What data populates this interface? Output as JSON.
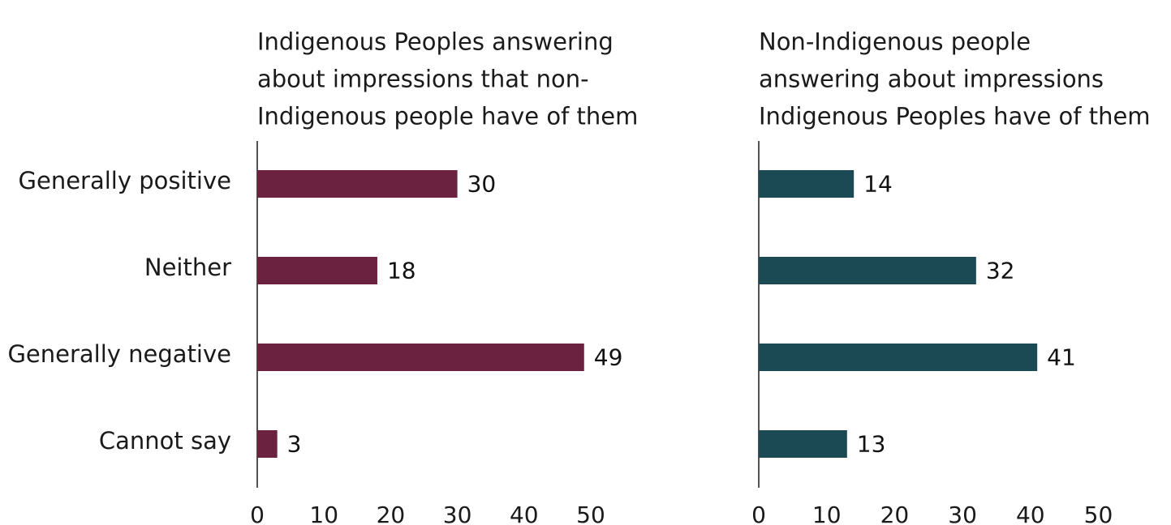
{
  "chart_data": [
    {
      "type": "bar",
      "orientation": "horizontal",
      "title_lines": [
        "Indigenous Peoples answering",
        "about impressions that non-",
        "Indigenous people have of them"
      ],
      "categories": [
        "Generally positive",
        "Neither",
        "Generally negative",
        "Cannot say"
      ],
      "values": [
        30,
        18,
        49,
        3
      ],
      "xlim": [
        0,
        50
      ],
      "xticks": [
        0,
        10,
        20,
        30,
        40,
        50
      ],
      "color": "#6a2240",
      "show_category_labels": true,
      "grid": false
    },
    {
      "type": "bar",
      "orientation": "horizontal",
      "title_lines": [
        "Non-Indigenous people",
        "answering about impressions",
        "Indigenous Peoples have of them"
      ],
      "categories": [
        "Generally positive",
        "Neither",
        "Generally negative",
        "Cannot say"
      ],
      "values": [
        14,
        32,
        41,
        13
      ],
      "xlim": [
        0,
        50
      ],
      "xticks": [
        0,
        10,
        20,
        30,
        40,
        50
      ],
      "color": "#1b4a55",
      "show_category_labels": false,
      "grid": false
    }
  ]
}
